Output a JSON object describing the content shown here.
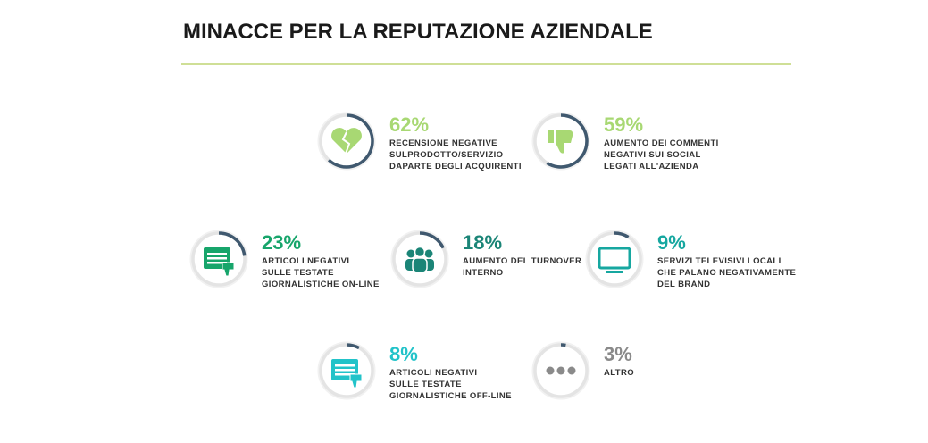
{
  "chart_data": {
    "type": "ring",
    "title": "MINACCE PER LA REPUTAZIONE AZIENDALE",
    "categories": [
      "RECENSIONE NEGATIVE\nSULPRODOTTO/SERVIZIO\nDAPARTE DEGLI ACQUIRENTI",
      "AUMENTO DEI COMMENTI\nNEGATIVI SUI SOCIAL\nLEGATI ALL'AZIENDA",
      "ARTICOLI NEGATIVI\nSULLE TESTATE\nGIORNALISTICHE ON-LINE",
      "AUMENTO DEL TURNOVER\nINTERNO",
      "SERVIZI TELEVISIVI LOCALI\nCHE PALANO NEGATIVAMENTE\nDEL BRAND",
      "ARTICOLI NEGATIVI\nSULLE TESTATE\nGIORNALISTICHE OFF-LINE",
      "ALTRO"
    ],
    "values": [
      62,
      59,
      23,
      18,
      9,
      8,
      3
    ],
    "value_labels": [
      "62%",
      "59%",
      "23%",
      "18%",
      "9%",
      "8%",
      "3%"
    ],
    "colors": [
      "#a8d873",
      "#a8d873",
      "#17a56b",
      "#1b8577",
      "#16a7a0",
      "#22c3c9",
      "#8a8a8a"
    ],
    "ring_color": "#40596f",
    "track_color": "#e4e4e4"
  }
}
